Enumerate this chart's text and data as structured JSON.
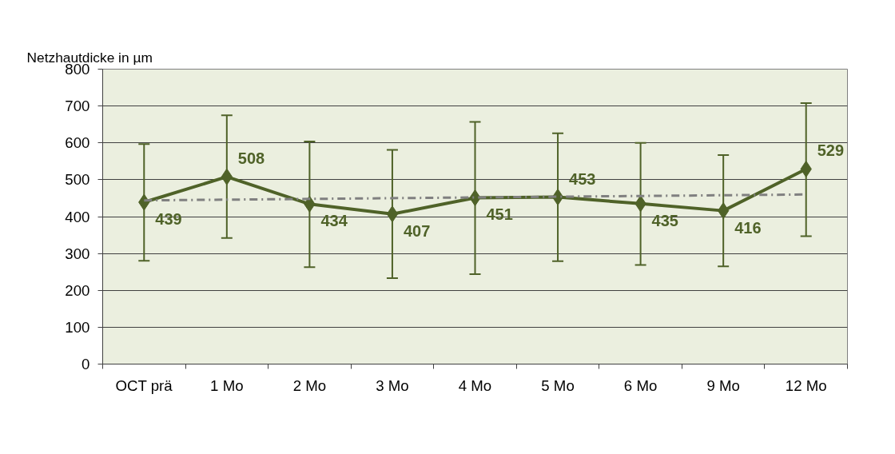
{
  "chart_data": {
    "type": "line",
    "ylabel": "Netzhautdicke in µm",
    "categories": [
      "OCT prä",
      "1 Mo",
      "2 Mo",
      "3 Mo",
      "4 Mo",
      "5 Mo",
      "6 Mo",
      "9 Mo",
      "12 Mo"
    ],
    "series": [
      {
        "color": "#4f6228",
        "values": [
          439,
          508,
          434,
          407,
          451,
          453,
          435,
          416,
          529
        ],
        "marker": "diamond",
        "line_style": "solid",
        "data_labels": true,
        "errors": [
          [
            280,
            597
          ],
          [
            342,
            675
          ],
          [
            263,
            604
          ],
          [
            233,
            581
          ],
          [
            244,
            657
          ],
          [
            279,
            626
          ],
          [
            269,
            600
          ],
          [
            265,
            567
          ],
          [
            347,
            708
          ]
        ]
      },
      {
        "type": "line",
        "color": "#808080",
        "x": [
          "OCT prä",
          "12 Mo"
        ],
        "values": [
          444,
          460
        ],
        "marker": "none",
        "line_style": "dashdot"
      }
    ],
    "ylim": [
      0,
      800
    ],
    "yticks": [
      0,
      100,
      200,
      300,
      400,
      500,
      600,
      700,
      800
    ],
    "grid": "y"
  }
}
